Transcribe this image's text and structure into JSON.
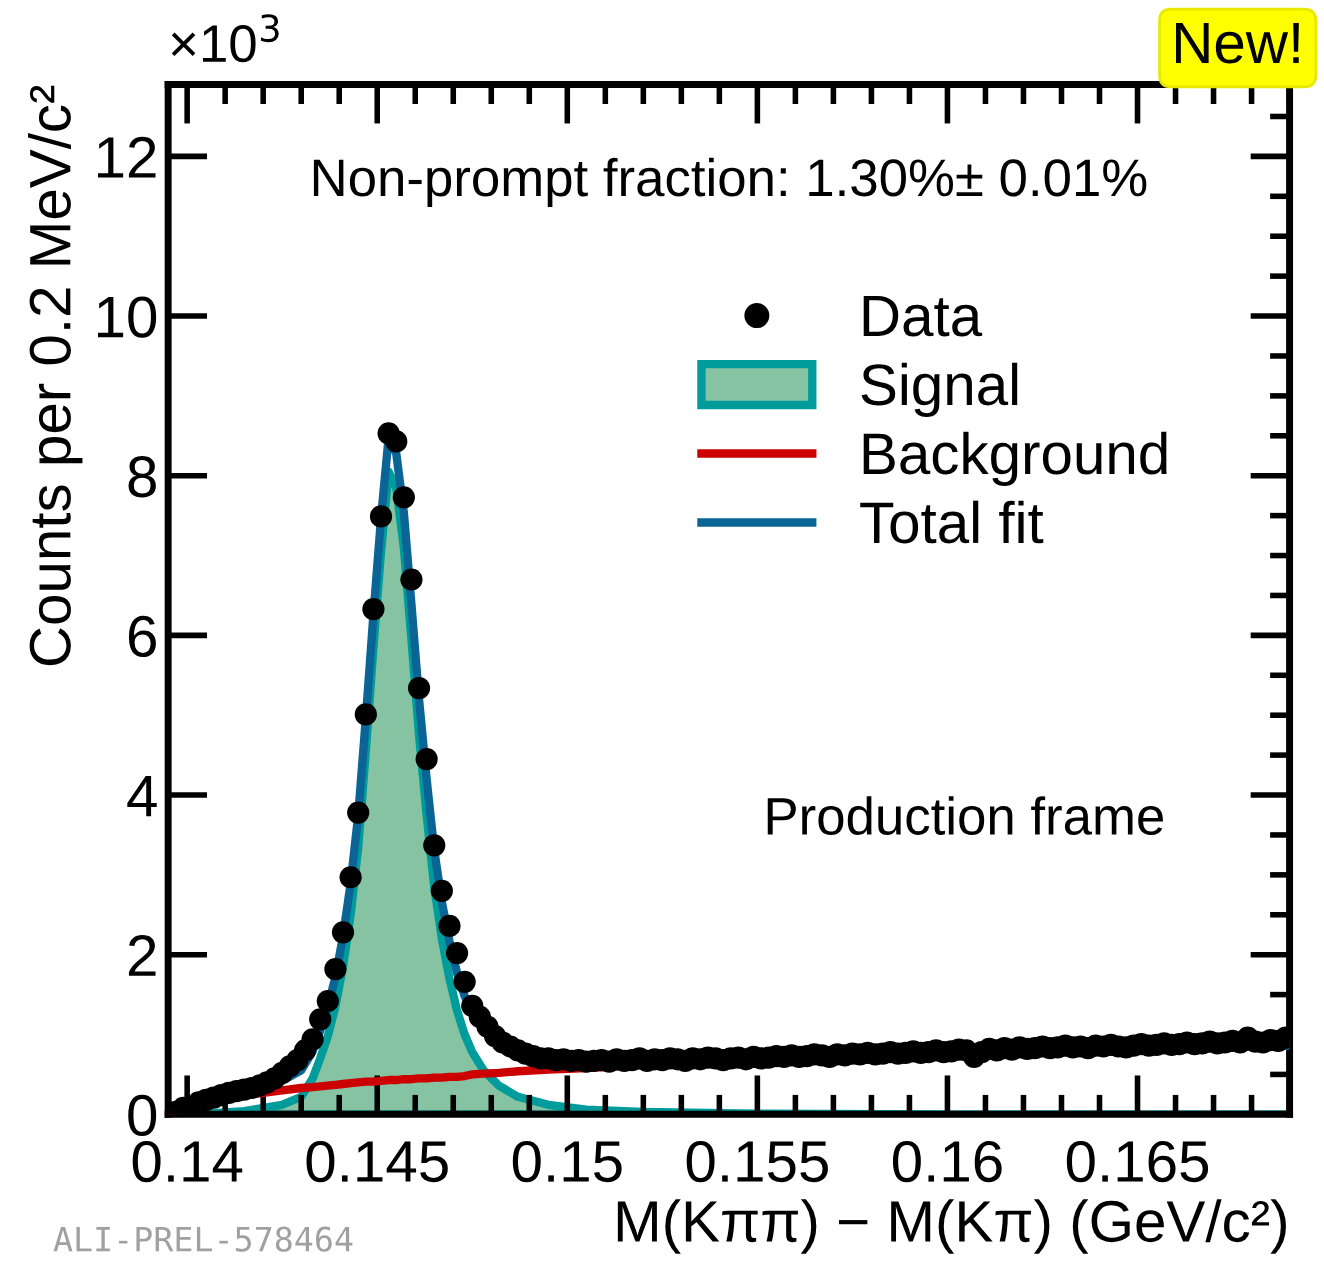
{
  "chart_data": {
    "type": "scatter",
    "xlabel": "M(Kππ) − M(Kπ) (GeV/c²)",
    "ylabel": "Counts per 0.2 MeV/c²",
    "annotations": [
      "×10$^{3}$",
      "Non-prompt fraction: 1.30%± 0.01%",
      "Production frame",
      "New!",
      "ALI-PREL-578464"
    ],
    "xlim": [
      0.1395,
      0.169
    ],
    "xticks": [
      0.14,
      0.145,
      0.15,
      0.155,
      0.16,
      0.165
    ],
    "ylim": [
      0,
      12.9
    ],
    "yticks": [
      0,
      2,
      4,
      6,
      8,
      10,
      12
    ],
    "grid": false,
    "legend": "center right",
    "series": [
      {
        "name": "Data",
        "marker": "circle",
        "color": "#000000",
        "x": [
          0.1397,
          0.1399,
          0.1401,
          0.1403,
          0.1405,
          0.1407,
          0.1409,
          0.1411,
          0.1413,
          0.1415,
          0.1417,
          0.1419,
          0.1421,
          0.1423,
          0.1425,
          0.1427,
          0.1429,
          0.1431,
          0.1433,
          0.1435,
          0.1437,
          0.1439,
          0.1441,
          0.1443,
          0.1445,
          0.1447,
          0.1449,
          0.1451,
          0.1453,
          0.1455,
          0.1457,
          0.1459,
          0.1461,
          0.1463,
          0.1465,
          0.1467,
          0.1469,
          0.1471,
          0.1473,
          0.1475,
          0.1477,
          0.1479,
          0.1481,
          0.1483,
          0.1485,
          0.1487,
          0.1489,
          0.1491,
          0.1493,
          0.1495,
          0.1497,
          0.1499,
          0.1501,
          0.1503,
          0.1505,
          0.1507,
          0.1509,
          0.1511,
          0.1513,
          0.1515,
          0.1517,
          0.1519,
          0.1521,
          0.1523,
          0.1525,
          0.1527,
          0.1529,
          0.1531,
          0.1533,
          0.1535,
          0.1537,
          0.1539,
          0.1541,
          0.1543,
          0.1545,
          0.1547,
          0.1549,
          0.1551,
          0.1553,
          0.1555,
          0.1557,
          0.1559,
          0.1561,
          0.1563,
          0.1565,
          0.1567,
          0.1569,
          0.1571,
          0.1573,
          0.1575,
          0.1577,
          0.1579,
          0.1581,
          0.1583,
          0.1585,
          0.1587,
          0.1589,
          0.1591,
          0.1593,
          0.1595,
          0.1597,
          0.1599,
          0.1601,
          0.1603,
          0.1605,
          0.1607,
          0.1609,
          0.1611,
          0.1613,
          0.1615,
          0.1617,
          0.1619,
          0.1621,
          0.1623,
          0.1625,
          0.1627,
          0.1629,
          0.1631,
          0.1633,
          0.1635,
          0.1637,
          0.1639,
          0.1641,
          0.1643,
          0.1645,
          0.1647,
          0.1649,
          0.1651,
          0.1653,
          0.1655,
          0.1657,
          0.1659,
          0.1661,
          0.1663,
          0.1665,
          0.1667,
          0.1669,
          0.1671,
          0.1673,
          0.1675,
          0.1677,
          0.1679,
          0.1681,
          0.1683,
          0.1685,
          0.1687,
          0.1689
        ],
        "values": [
          0.03,
          0.08,
          null,
          0.15,
          0.18,
          0.21,
          0.24,
          0.27,
          0.29,
          0.31,
          0.33,
          0.36,
          0.4,
          0.45,
          0.52,
          0.6,
          0.68,
          0.8,
          0.94,
          1.19,
          1.42,
          1.82,
          2.28,
          2.97,
          3.78,
          5.01,
          6.33,
          7.49,
          8.53,
          8.43,
          7.73,
          6.7,
          5.34,
          4.45,
          3.37,
          2.8,
          2.36,
          2.02,
          1.66,
          1.36,
          1.22,
          1.1,
          0.98,
          0.9,
          0.85,
          0.8,
          0.76,
          0.73,
          0.7,
          0.7,
          0.68,
          0.69,
          0.67,
          0.68,
          0.66,
          0.67,
          0.68,
          0.66,
          0.69,
          0.67,
          0.68,
          0.7,
          0.67,
          0.69,
          0.68,
          0.7,
          0.69,
          0.67,
          0.7,
          0.69,
          0.71,
          0.7,
          0.68,
          0.7,
          0.71,
          0.69,
          0.72,
          0.7,
          0.71,
          0.73,
          0.72,
          0.74,
          0.72,
          0.73,
          0.75,
          0.74,
          0.72,
          0.75,
          0.74,
          0.76,
          0.75,
          0.77,
          0.75,
          0.76,
          0.78,
          0.76,
          0.77,
          0.79,
          0.77,
          0.78,
          0.8,
          0.78,
          0.79,
          0.81,
          0.8,
          0.72,
          0.78,
          0.82,
          0.8,
          0.83,
          0.81,
          0.84,
          0.82,
          0.83,
          0.85,
          0.83,
          0.84,
          0.86,
          0.84,
          0.85,
          0.83,
          0.86,
          0.85,
          0.87,
          0.85,
          0.84,
          0.86,
          0.88,
          0.86,
          0.87,
          0.89,
          0.87,
          0.88,
          0.9,
          0.88,
          0.89,
          0.91,
          0.89,
          0.9,
          0.92,
          0.9,
          0.96,
          0.91,
          0.9,
          0.93,
          0.92,
          0.96
        ]
      },
      {
        "name": "Signal",
        "type": "area",
        "color": "#86c3a2",
        "x": [
          0.1396,
          0.1405,
          0.1415,
          0.1425,
          0.143,
          0.1433,
          0.1435,
          0.1437,
          0.1439,
          0.1441,
          0.1443,
          0.1445,
          0.1447,
          0.1449,
          0.1451,
          0.1453,
          0.1455,
          0.1457,
          0.1459,
          0.1461,
          0.1463,
          0.1465,
          0.1467,
          0.1469,
          0.1471,
          0.1473,
          0.1475,
          0.1478,
          0.1482,
          0.1487,
          0.1495,
          0.1505,
          0.152,
          0.155,
          0.16,
          0.169
        ],
        "values": [
          0.0,
          0.01,
          0.04,
          0.12,
          0.22,
          0.45,
          0.7,
          0.98,
          1.35,
          1.85,
          2.5,
          3.35,
          4.55,
          5.85,
          7.05,
          8.05,
          7.85,
          7.1,
          5.95,
          4.75,
          3.75,
          2.85,
          2.2,
          1.7,
          1.3,
          1.0,
          0.78,
          0.55,
          0.36,
          0.22,
          0.12,
          0.06,
          0.03,
          0.01,
          0.0,
          0.0
        ]
      },
      {
        "name": "Background",
        "type": "line",
        "color": "#cc0000",
        "x": [
          0.1396,
          0.1405,
          0.1415,
          0.1425,
          0.143,
          0.1433,
          0.1435,
          0.1437,
          0.1439,
          0.1441,
          0.1443,
          0.1445,
          0.1447,
          0.1449,
          0.1451,
          0.1453,
          0.1455,
          0.1457,
          0.1459,
          0.1461,
          0.1463,
          0.1465,
          0.1467,
          0.1469,
          0.1471,
          0.1473,
          0.1475,
          0.1478,
          0.1482,
          0.1487,
          0.1495,
          0.1505,
          0.152
        ],
        "values": [
          0.02,
          0.16,
          0.24,
          0.3,
          0.33,
          0.34,
          0.35,
          0.36,
          0.37,
          0.38,
          0.39,
          0.4,
          0.41,
          0.41,
          0.42,
          0.43,
          0.43,
          0.44,
          0.44,
          0.45,
          0.45,
          0.46,
          0.46,
          0.47,
          0.47,
          0.48,
          0.5,
          0.51,
          0.52,
          0.54,
          0.56,
          0.58,
          0.62
        ]
      },
      {
        "name": "Total fit",
        "type": "line",
        "color": "#0b6496",
        "x": [
          0.1415,
          0.1425,
          0.143,
          0.1433,
          0.1435,
          0.1437,
          0.1439,
          0.1441,
          0.1443,
          0.1445,
          0.1447,
          0.1449,
          0.1451,
          0.1453,
          0.1455,
          0.1457,
          0.1459,
          0.1461,
          0.1463,
          0.1465,
          0.1467,
          0.1469,
          0.1471,
          0.1473,
          0.1475,
          0.1478,
          0.1482,
          0.1487,
          0.1495,
          0.1505,
          0.152,
          0.155,
          0.16,
          0.169
        ],
        "values": [
          0.28,
          0.42,
          0.55,
          0.79,
          1.05,
          1.34,
          1.72,
          2.23,
          2.89,
          3.75,
          4.96,
          6.26,
          7.47,
          8.48,
          8.28,
          7.54,
          6.39,
          5.2,
          4.2,
          3.31,
          2.66,
          2.17,
          1.77,
          1.48,
          1.28,
          1.06,
          0.88,
          0.76,
          0.68,
          0.64,
          0.65,
          0.68,
          0.75,
          0.86
        ]
      }
    ]
  }
}
